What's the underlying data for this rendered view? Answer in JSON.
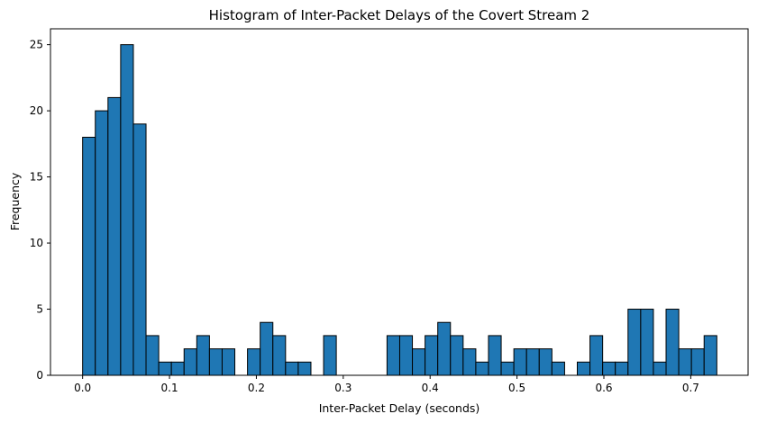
{
  "chart_data": {
    "type": "bar",
    "title": "Histogram of Inter-Packet Delays of the Covert Stream 2",
    "xlabel": "Inter-Packet Delay (seconds)",
    "ylabel": "Frequency",
    "xlim": [
      -0.037,
      0.766
    ],
    "ylim": [
      0,
      26.2
    ],
    "xticks": [
      0.0,
      0.1,
      0.2,
      0.3,
      0.4,
      0.5,
      0.6,
      0.7
    ],
    "xtick_labels": [
      "0.0",
      "0.1",
      "0.2",
      "0.3",
      "0.4",
      "0.5",
      "0.6",
      "0.7"
    ],
    "yticks": [
      0,
      5,
      10,
      15,
      20,
      25
    ],
    "ytick_labels": [
      "0",
      "5",
      "10",
      "15",
      "20",
      "25"
    ],
    "grid": false,
    "bar_color": "#1f77b4",
    "edge_color": "#000000",
    "bin_start": 0.0,
    "bin_width": 0.0146,
    "counts": [
      18,
      20,
      21,
      25,
      19,
      3,
      1,
      1,
      2,
      3,
      2,
      2,
      0,
      2,
      4,
      3,
      1,
      1,
      0,
      3,
      0,
      0,
      0,
      0,
      3,
      3,
      2,
      3,
      4,
      3,
      2,
      1,
      3,
      1,
      2,
      2,
      2,
      1,
      0,
      1,
      3,
      1,
      1,
      5,
      5,
      1,
      5,
      2,
      2,
      3
    ]
  }
}
